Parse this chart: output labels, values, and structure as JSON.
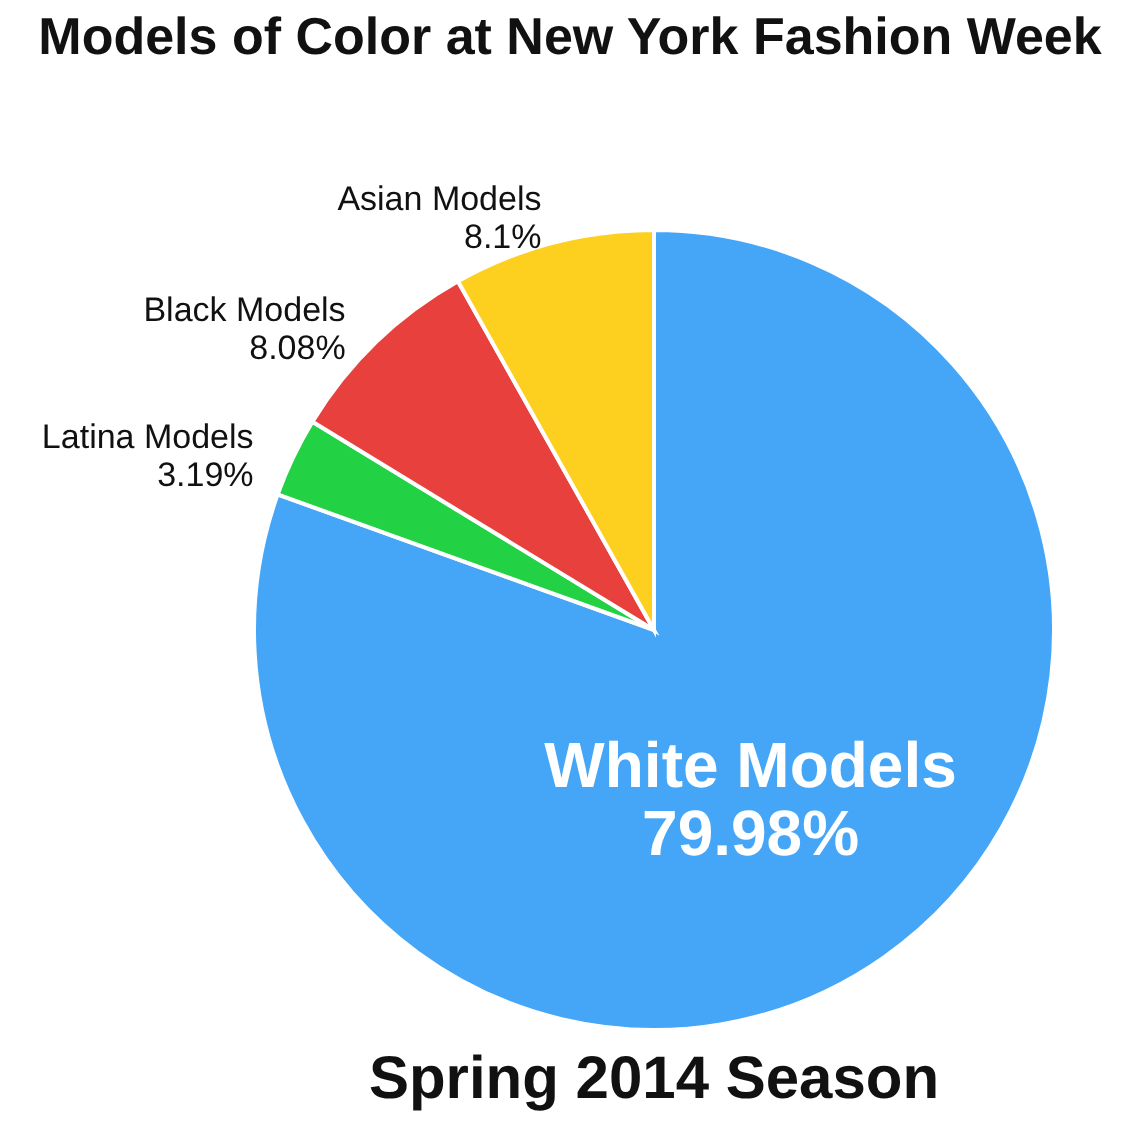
{
  "chart_data": {
    "type": "pie",
    "title": "Models of Color at New York Fashion Week",
    "subtitle": "Spring 2014 Season",
    "categories": [
      "White Models",
      "Latina Models",
      "Black Models",
      "Asian Models"
    ],
    "values": [
      79.98,
      3.19,
      8.08,
      8.1
    ],
    "colors": [
      "#45a6f7",
      "#22d244",
      "#e8413d",
      "#fdcf1e"
    ],
    "value_labels": [
      "79.98%",
      "3.19%",
      "8.08%",
      "8.1%"
    ],
    "legend": false
  }
}
